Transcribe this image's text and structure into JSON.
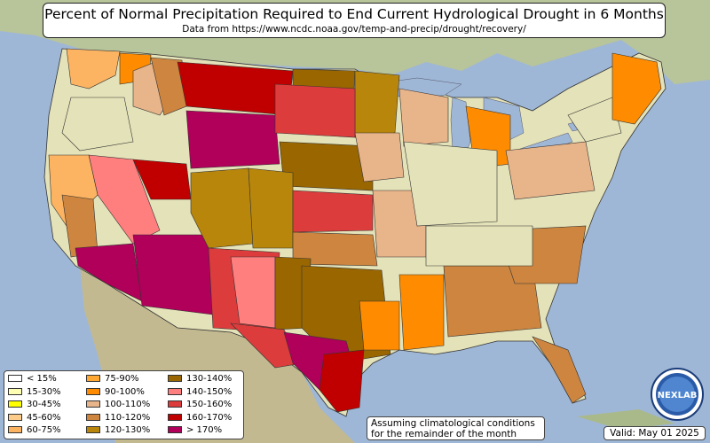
{
  "title": "Percent of Normal Precipitation Required to End Current Hydrological Drought in 6 Months",
  "subtitle": "Data from https://www.ncdc.noaa.gov/temp-and-precip/drought/recovery/",
  "legend": [
    {
      "label": "< 15%",
      "color": "#ffffff"
    },
    {
      "label": "15-30%",
      "color": "#ffffb3"
    },
    {
      "label": "30-45%",
      "color": "#ffff00"
    },
    {
      "label": "45-60%",
      "color": "#fdcc8a"
    },
    {
      "label": "60-75%",
      "color": "#fdb462"
    },
    {
      "label": "75-90%",
      "color": "#ffa733"
    },
    {
      "label": "90-100%",
      "color": "#ff8c00"
    },
    {
      "label": "100-110%",
      "color": "#e8b48a"
    },
    {
      "label": "110-120%",
      "color": "#cd853f"
    },
    {
      "label": "120-130%",
      "color": "#b8860b"
    },
    {
      "label": "130-140%",
      "color": "#996600"
    },
    {
      "label": "140-150%",
      "color": "#ff7f7f"
    },
    {
      "label": "150-160%",
      "color": "#dd3c3c"
    },
    {
      "label": "160-170%",
      "color": "#c00000"
    },
    {
      "label": "> 170%",
      "color": "#b0005a"
    }
  ],
  "note_line1": "Assuming climatological conditions",
  "note_line2": "for the remainder of the month",
  "valid": "Valid: May 01 2025",
  "logo_text": "NEXLAB"
}
